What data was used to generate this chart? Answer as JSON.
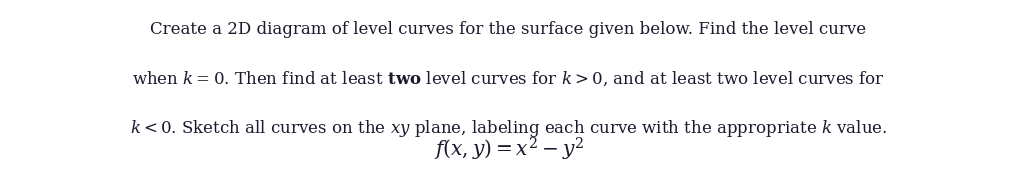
{
  "figsize": [
    10.17,
    1.73
  ],
  "dpi": 100,
  "background_color": "#ffffff",
  "line1": "Create a 2D diagram of level curves for the surface given below. Find the level curve",
  "line2": "when $k = 0$. Then find at least $\\mathbf{two}$ level curves for $k > 0$, and at least two level curves for",
  "line3": "$k < 0$. Sketch all curves on the $xy$ plane, labeling each curve with the appropriate $k$ value.",
  "formula_text": "$f(x, y) = x^2 - y^2$",
  "font_size_paragraph": 12.0,
  "font_size_formula": 14.5,
  "text_color": "#1a1a2e",
  "font_family": "serif"
}
